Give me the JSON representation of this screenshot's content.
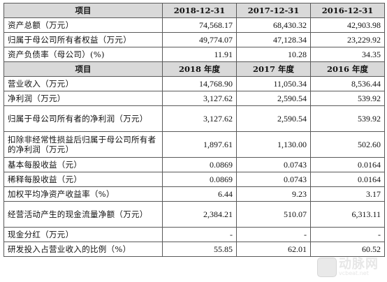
{
  "table": {
    "section1": {
      "header": [
        "项目",
        "2018-12-31",
        "2017-12-31",
        "2016-12-31"
      ],
      "rows": [
        {
          "label": "资产总额（万元）",
          "values": [
            "74,568.17",
            "68,430.32",
            "42,903.98"
          ]
        },
        {
          "label": "归属于母公司所有者权益（万元）",
          "values": [
            "49,774.07",
            "47,128.34",
            "23,229.92"
          ]
        },
        {
          "label": "资产负债率（母公司）(%)",
          "values": [
            "11.91",
            "10.28",
            "34.35"
          ]
        }
      ]
    },
    "section2": {
      "header": [
        "项目",
        "2018 年度",
        "2017 年度",
        "2016 年度"
      ],
      "rows": [
        {
          "label": "营业收入（万元）",
          "values": [
            "14,768.90",
            "11,050.34",
            "8,536.44"
          ]
        },
        {
          "label": "净利润（万元）",
          "values": [
            "3,127.62",
            "2,590.54",
            "539.92"
          ]
        },
        {
          "label": "归属于母公司所有者的净利润（万元）",
          "values": [
            "3,127.62",
            "2,590.54",
            "539.92"
          ]
        },
        {
          "label": "扣除非经常性损益后归属于母公司所有者的净利润（万元）",
          "values": [
            "1,897.61",
            "1,130.00",
            "502.60"
          ]
        },
        {
          "label": "基本每股收益（元）",
          "values": [
            "0.0869",
            "0.0743",
            "0.0164"
          ]
        },
        {
          "label": "稀释每股收益（元）",
          "values": [
            "0.0869",
            "0.0743",
            "0.0164"
          ]
        },
        {
          "label": "加权平均净资产收益率（%）",
          "values": [
            "6.44",
            "9.23",
            "3.17"
          ]
        },
        {
          "label": "经营活动产生的现金流量净额（万元）",
          "values": [
            "2,384.21",
            "510.07",
            "6,313.11"
          ]
        },
        {
          "label": "现金分红（万元）",
          "values": [
            "-",
            "-",
            "-"
          ]
        },
        {
          "label": "研发投入占营业收入的比例（%）",
          "values": [
            "55.85",
            "62.01",
            "60.52"
          ]
        }
      ]
    }
  },
  "watermark": {
    "text": "动脉网",
    "subtext": "vcbeat.net"
  }
}
